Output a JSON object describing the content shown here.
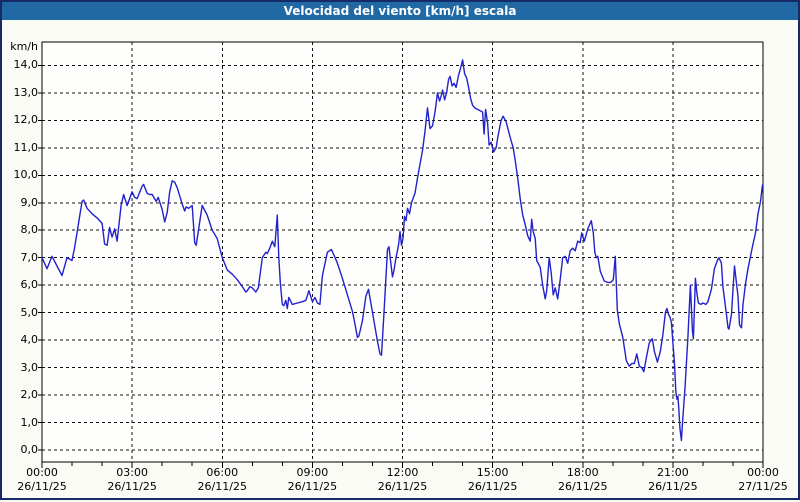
{
  "title": "Velocidad del viento [km/h] escala",
  "colors": {
    "window_border": "#152a66",
    "titlebar_bg": "#2069a4",
    "titlebar_text": "#ffffff",
    "page_bg": "#fbfbf5",
    "plot_bg": "#fefefc",
    "grid": "#111111",
    "axis": "#000000",
    "series_line": "#2121cd",
    "label_text": "#000000"
  },
  "y_axis": {
    "unit_label": "km/h",
    "tick_labels": [
      "0,0",
      "1,0",
      "2,0",
      "3,0",
      "4,0",
      "5,0",
      "6,0",
      "7,0",
      "8,0",
      "9,0",
      "10,0",
      "11,0",
      "12,0",
      "13,0",
      "14,0"
    ]
  },
  "x_axis": {
    "ticks": [
      {
        "time": "00:00",
        "date": "26/11/25",
        "hour": 0
      },
      {
        "time": "03:00",
        "date": "26/11/25",
        "hour": 3
      },
      {
        "time": "06:00",
        "date": "26/11/25",
        "hour": 6
      },
      {
        "time": "09:00",
        "date": "26/11/25",
        "hour": 9
      },
      {
        "time": "12:00",
        "date": "26/11/25",
        "hour": 12
      },
      {
        "time": "15:00",
        "date": "26/11/25",
        "hour": 15
      },
      {
        "time": "18:00",
        "date": "26/11/25",
        "hour": 18
      },
      {
        "time": "21:00",
        "date": "26/11/25",
        "hour": 21
      },
      {
        "time": "00:00",
        "date": "27/11/25",
        "hour": 24
      }
    ]
  },
  "chart_data": {
    "type": "line",
    "title": "Velocidad del viento [km/h] escala",
    "ylabel": "km/h",
    "ylim": [
      0,
      15.0
    ],
    "xlim_minutes": [
      0,
      1440
    ],
    "grid": "dashed",
    "x_major_every_hours": 3,
    "x_minor_every_hours": 1,
    "series_name": "Velocidad del viento",
    "points_minutes_kmh": [
      [
        0,
        7.0
      ],
      [
        10,
        6.6
      ],
      [
        20,
        7.05
      ],
      [
        30,
        6.7
      ],
      [
        40,
        6.35
      ],
      [
        50,
        7.0
      ],
      [
        60,
        6.9
      ],
      [
        65,
        7.35
      ],
      [
        70,
        7.9
      ],
      [
        75,
        8.5
      ],
      [
        80,
        9.05
      ],
      [
        83,
        9.1
      ],
      [
        90,
        8.8
      ],
      [
        100,
        8.6
      ],
      [
        110,
        8.45
      ],
      [
        120,
        8.25
      ],
      [
        125,
        7.5
      ],
      [
        130,
        7.45
      ],
      [
        135,
        8.1
      ],
      [
        140,
        7.75
      ],
      [
        145,
        8.05
      ],
      [
        150,
        7.6
      ],
      [
        158,
        8.9
      ],
      [
        163,
        9.3
      ],
      [
        170,
        8.9
      ],
      [
        180,
        9.4
      ],
      [
        185,
        9.2
      ],
      [
        190,
        9.15
      ],
      [
        200,
        9.6
      ],
      [
        203,
        9.67
      ],
      [
        210,
        9.35
      ],
      [
        215,
        9.3
      ],
      [
        220,
        9.3
      ],
      [
        228,
        9.05
      ],
      [
        232,
        9.2
      ],
      [
        240,
        8.75
      ],
      [
        245,
        8.3
      ],
      [
        250,
        8.65
      ],
      [
        255,
        9.4
      ],
      [
        260,
        9.8
      ],
      [
        265,
        9.75
      ],
      [
        270,
        9.55
      ],
      [
        280,
        8.95
      ],
      [
        285,
        8.7
      ],
      [
        288,
        8.85
      ],
      [
        293,
        8.8
      ],
      [
        300,
        8.9
      ],
      [
        305,
        7.55
      ],
      [
        308,
        7.45
      ],
      [
        315,
        8.3
      ],
      [
        320,
        8.9
      ],
      [
        330,
        8.55
      ],
      [
        340,
        8.0
      ],
      [
        350,
        7.7
      ],
      [
        360,
        7.0
      ],
      [
        370,
        6.55
      ],
      [
        380,
        6.4
      ],
      [
        390,
        6.2
      ],
      [
        400,
        5.95
      ],
      [
        407,
        5.75
      ],
      [
        410,
        5.8
      ],
      [
        415,
        5.95
      ],
      [
        420,
        5.9
      ],
      [
        427,
        5.75
      ],
      [
        432,
        5.9
      ],
      [
        440,
        7.0
      ],
      [
        447,
        7.2
      ],
      [
        450,
        7.15
      ],
      [
        455,
        7.35
      ],
      [
        460,
        7.6
      ],
      [
        465,
        7.4
      ],
      [
        470,
        8.55
      ],
      [
        473,
        7.0
      ],
      [
        476,
        6.1
      ],
      [
        480,
        5.3
      ],
      [
        483,
        5.25
      ],
      [
        487,
        5.45
      ],
      [
        490,
        5.15
      ],
      [
        493,
        5.55
      ],
      [
        500,
        5.3
      ],
      [
        510,
        5.35
      ],
      [
        520,
        5.4
      ],
      [
        527,
        5.45
      ],
      [
        533,
        5.8
      ],
      [
        540,
        5.4
      ],
      [
        545,
        5.55
      ],
      [
        550,
        5.35
      ],
      [
        555,
        5.3
      ],
      [
        560,
        6.35
      ],
      [
        570,
        7.2
      ],
      [
        578,
        7.3
      ],
      [
        583,
        7.1
      ],
      [
        590,
        6.8
      ],
      [
        600,
        6.25
      ],
      [
        610,
        5.65
      ],
      [
        620,
        5.05
      ],
      [
        625,
        4.6
      ],
      [
        630,
        4.1
      ],
      [
        633,
        4.15
      ],
      [
        640,
        4.7
      ],
      [
        647,
        5.6
      ],
      [
        652,
        5.85
      ],
      [
        660,
        5.0
      ],
      [
        670,
        3.95
      ],
      [
        675,
        3.5
      ],
      [
        678,
        3.45
      ],
      [
        683,
        5.0
      ],
      [
        690,
        7.3
      ],
      [
        693,
        7.4
      ],
      [
        696,
        6.9
      ],
      [
        700,
        6.3
      ],
      [
        703,
        6.55
      ],
      [
        707,
        7.0
      ],
      [
        712,
        7.45
      ],
      [
        715,
        7.95
      ],
      [
        718,
        7.45
      ],
      [
        721,
        7.7
      ],
      [
        724,
        8.5
      ],
      [
        727,
        8.35
      ],
      [
        730,
        8.8
      ],
      [
        734,
        8.6
      ],
      [
        738,
        9.0
      ],
      [
        742,
        9.2
      ],
      [
        745,
        9.35
      ],
      [
        750,
        9.9
      ],
      [
        760,
        10.9
      ],
      [
        765,
        11.6
      ],
      [
        770,
        12.45
      ],
      [
        775,
        11.7
      ],
      [
        780,
        11.8
      ],
      [
        785,
        12.3
      ],
      [
        790,
        13.0
      ],
      [
        794,
        12.7
      ],
      [
        798,
        12.95
      ],
      [
        800,
        13.1
      ],
      [
        804,
        12.75
      ],
      [
        808,
        13.0
      ],
      [
        812,
        13.5
      ],
      [
        815,
        13.6
      ],
      [
        819,
        13.25
      ],
      [
        823,
        13.35
      ],
      [
        827,
        13.2
      ],
      [
        832,
        13.65
      ],
      [
        836,
        13.9
      ],
      [
        840,
        14.2
      ],
      [
        844,
        13.7
      ],
      [
        848,
        13.55
      ],
      [
        852,
        13.2
      ],
      [
        856,
        12.8
      ],
      [
        860,
        12.55
      ],
      [
        865,
        12.45
      ],
      [
        870,
        12.4
      ],
      [
        875,
        12.35
      ],
      [
        880,
        12.3
      ],
      [
        883,
        11.5
      ],
      [
        886,
        12.4
      ],
      [
        890,
        11.9
      ],
      [
        893,
        11.1
      ],
      [
        897,
        11.2
      ],
      [
        902,
        10.85
      ],
      [
        907,
        11.0
      ],
      [
        911,
        11.45
      ],
      [
        917,
        12.0
      ],
      [
        921,
        12.15
      ],
      [
        927,
        11.95
      ],
      [
        932,
        11.6
      ],
      [
        937,
        11.25
      ],
      [
        941,
        11.0
      ],
      [
        945,
        10.55
      ],
      [
        950,
        9.9
      ],
      [
        955,
        9.15
      ],
      [
        960,
        8.55
      ],
      [
        965,
        8.2
      ],
      [
        970,
        7.8
      ],
      [
        975,
        7.6
      ],
      [
        978,
        8.4
      ],
      [
        981,
        7.95
      ],
      [
        985,
        7.7
      ],
      [
        988,
        6.9
      ],
      [
        995,
        6.65
      ],
      [
        1000,
        6.0
      ],
      [
        1005,
        5.5
      ],
      [
        1008,
        5.8
      ],
      [
        1013,
        7.0
      ],
      [
        1017,
        6.45
      ],
      [
        1021,
        5.65
      ],
      [
        1025,
        5.9
      ],
      [
        1030,
        5.5
      ],
      [
        1035,
        6.2
      ],
      [
        1040,
        7.0
      ],
      [
        1045,
        7.05
      ],
      [
        1050,
        6.8
      ],
      [
        1055,
        7.25
      ],
      [
        1060,
        7.35
      ],
      [
        1065,
        7.25
      ],
      [
        1070,
        7.6
      ],
      [
        1075,
        7.55
      ],
      [
        1078,
        7.9
      ],
      [
        1083,
        7.6
      ],
      [
        1090,
        8.05
      ],
      [
        1097,
        8.35
      ],
      [
        1101,
        7.9
      ],
      [
        1104,
        7.2
      ],
      [
        1107,
        7.0
      ],
      [
        1110,
        7.05
      ],
      [
        1115,
        6.5
      ],
      [
        1123,
        6.15
      ],
      [
        1130,
        6.1
      ],
      [
        1136,
        6.1
      ],
      [
        1141,
        6.2
      ],
      [
        1145,
        7.05
      ],
      [
        1149,
        5.1
      ],
      [
        1153,
        4.6
      ],
      [
        1160,
        4.1
      ],
      [
        1167,
        3.25
      ],
      [
        1173,
        3.05
      ],
      [
        1178,
        3.15
      ],
      [
        1183,
        3.15
      ],
      [
        1188,
        3.5
      ],
      [
        1193,
        3.05
      ],
      [
        1198,
        3.0
      ],
      [
        1202,
        2.85
      ],
      [
        1207,
        3.35
      ],
      [
        1213,
        3.9
      ],
      [
        1219,
        4.05
      ],
      [
        1223,
        3.6
      ],
      [
        1229,
        3.2
      ],
      [
        1235,
        3.6
      ],
      [
        1240,
        4.2
      ],
      [
        1245,
        5.0
      ],
      [
        1248,
        5.15
      ],
      [
        1251,
        4.95
      ],
      [
        1254,
        4.85
      ],
      [
        1257,
        4.65
      ],
      [
        1260,
        3.9
      ],
      [
        1263,
        3.2
      ],
      [
        1266,
        2.1
      ],
      [
        1268,
        1.85
      ],
      [
        1270,
        1.95
      ],
      [
        1272,
        1.45
      ],
      [
        1274,
        0.8
      ],
      [
        1277,
        0.35
      ],
      [
        1280,
        1.2
      ],
      [
        1284,
        2.2
      ],
      [
        1290,
        4.1
      ],
      [
        1295,
        6.0
      ],
      [
        1299,
        4.35
      ],
      [
        1301,
        4.05
      ],
      [
        1305,
        6.25
      ],
      [
        1308,
        5.7
      ],
      [
        1311,
        5.35
      ],
      [
        1316,
        5.3
      ],
      [
        1320,
        5.35
      ],
      [
        1326,
        5.3
      ],
      [
        1330,
        5.4
      ],
      [
        1337,
        5.85
      ],
      [
        1343,
        6.6
      ],
      [
        1350,
        6.95
      ],
      [
        1352,
        7.0
      ],
      [
        1357,
        6.8
      ],
      [
        1360,
        5.95
      ],
      [
        1367,
        4.95
      ],
      [
        1370,
        4.45
      ],
      [
        1372,
        4.4
      ],
      [
        1377,
        4.95
      ],
      [
        1380,
        5.85
      ],
      [
        1383,
        6.7
      ],
      [
        1390,
        5.6
      ],
      [
        1393,
        4.55
      ],
      [
        1397,
        4.45
      ],
      [
        1400,
        5.3
      ],
      [
        1405,
        6.05
      ],
      [
        1410,
        6.6
      ],
      [
        1415,
        7.05
      ],
      [
        1420,
        7.5
      ],
      [
        1425,
        7.9
      ],
      [
        1430,
        8.6
      ],
      [
        1435,
        9.05
      ],
      [
        1439,
        9.65
      ]
    ]
  }
}
